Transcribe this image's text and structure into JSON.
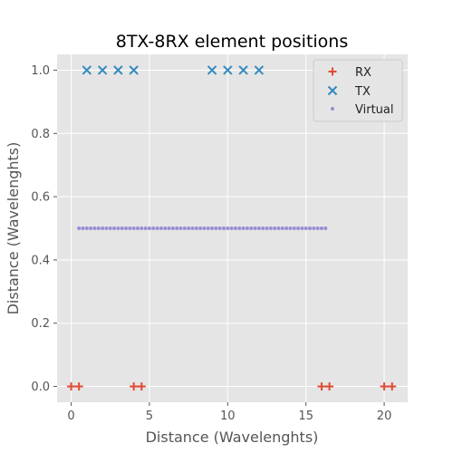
{
  "chart_data": {
    "type": "scatter",
    "title": "8TX-8RX element positions",
    "xlabel": "Distance (Wavelenghts)",
    "ylabel": "Distance (Wavelenghts)",
    "xlim": [
      -0.9,
      21.5
    ],
    "ylim": [
      -0.05,
      1.05
    ],
    "x_ticks": [
      0,
      5,
      10,
      15,
      20
    ],
    "y_ticks": [
      0.0,
      0.2,
      0.4,
      0.6,
      0.8,
      1.0
    ],
    "x_tick_labels": [
      "0",
      "5",
      "10",
      "15",
      "20"
    ],
    "y_tick_labels": [
      "0.0",
      "0.2",
      "0.4",
      "0.6",
      "0.8",
      "1.0"
    ],
    "grid": true,
    "legend_position": "top-right",
    "series": [
      {
        "name": "RX",
        "marker": "plus",
        "color": "#e24a33",
        "x": [
          0,
          0.5,
          4,
          4.5,
          16,
          16.5,
          20,
          20.5
        ],
        "y": [
          0,
          0,
          0,
          0,
          0,
          0,
          0,
          0
        ]
      },
      {
        "name": "TX",
        "marker": "x",
        "color": "#348abd",
        "x": [
          1,
          2,
          3,
          4,
          9,
          10,
          11,
          12
        ],
        "y": [
          1,
          1,
          1,
          1,
          1,
          1,
          1,
          1
        ]
      },
      {
        "name": "Virtual",
        "marker": "dot",
        "color": "#988ed5",
        "x": [
          0.5,
          0.75,
          1,
          1.25,
          1.5,
          1.75,
          2,
          2.25,
          2.5,
          2.75,
          3,
          3.25,
          3.5,
          3.75,
          4,
          4.25,
          4.5,
          4.75,
          5,
          5.25,
          5.5,
          5.75,
          6,
          6.25,
          6.5,
          6.75,
          7,
          7.25,
          7.5,
          7.75,
          8,
          8.25,
          8.5,
          8.75,
          9,
          9.25,
          9.5,
          9.75,
          10,
          10.25,
          10.5,
          10.75,
          11,
          11.25,
          11.5,
          11.75,
          12,
          12.25,
          12.5,
          12.75,
          13,
          13.25,
          13.5,
          13.75,
          14,
          14.25,
          14.5,
          14.75,
          15,
          15.25,
          15.5,
          15.75,
          16,
          16.25
        ],
        "y": [
          0.5,
          0.5,
          0.5,
          0.5,
          0.5,
          0.5,
          0.5,
          0.5,
          0.5,
          0.5,
          0.5,
          0.5,
          0.5,
          0.5,
          0.5,
          0.5,
          0.5,
          0.5,
          0.5,
          0.5,
          0.5,
          0.5,
          0.5,
          0.5,
          0.5,
          0.5,
          0.5,
          0.5,
          0.5,
          0.5,
          0.5,
          0.5,
          0.5,
          0.5,
          0.5,
          0.5,
          0.5,
          0.5,
          0.5,
          0.5,
          0.5,
          0.5,
          0.5,
          0.5,
          0.5,
          0.5,
          0.5,
          0.5,
          0.5,
          0.5,
          0.5,
          0.5,
          0.5,
          0.5,
          0.5,
          0.5,
          0.5,
          0.5,
          0.5,
          0.5,
          0.5,
          0.5,
          0.5,
          0.5
        ]
      }
    ]
  },
  "style": {
    "plot_background": "#e5e5e5",
    "grid_color": "#ffffff"
  }
}
